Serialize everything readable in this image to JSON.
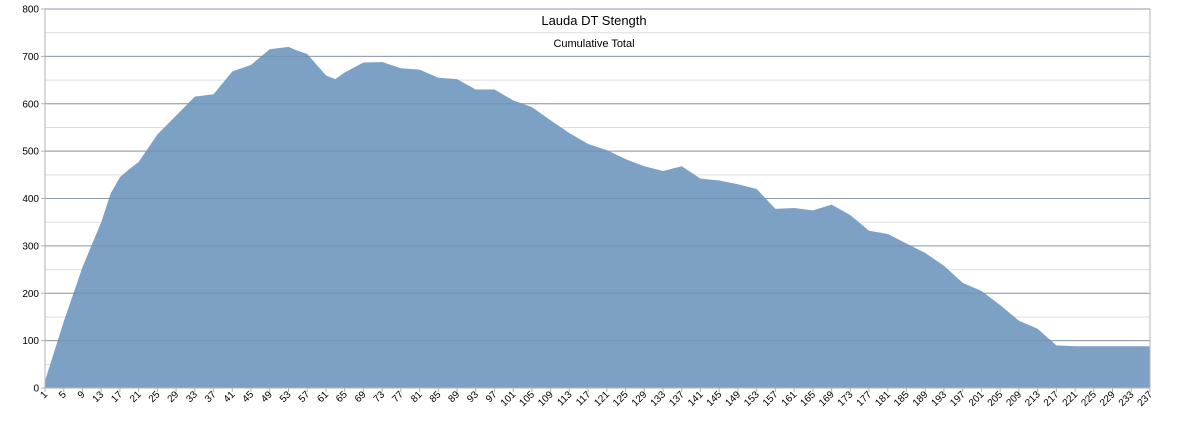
{
  "chart_data": {
    "type": "area",
    "title": "Lauda DT Stength",
    "subtitle": "Cumulative Total",
    "xlabel": "",
    "ylabel": "",
    "x_range": [
      1,
      237
    ],
    "ylim": [
      0,
      800
    ],
    "y_ticks": [
      0,
      100,
      200,
      300,
      400,
      500,
      600,
      700,
      800
    ],
    "x_tick_labels": [
      "1",
      "5",
      "9",
      "13",
      "17",
      "21",
      "25",
      "29",
      "33",
      "37",
      "41",
      "45",
      "49",
      "53",
      "57",
      "61",
      "65",
      "69",
      "73",
      "77",
      "81",
      "85",
      "89",
      "93",
      "97",
      "101",
      "105",
      "109",
      "113",
      "117",
      "121",
      "125",
      "129",
      "133",
      "137",
      "141",
      "145",
      "149",
      "153",
      "157",
      "161",
      "165",
      "169",
      "173",
      "177",
      "181",
      "185",
      "189",
      "193",
      "197",
      "201",
      "205",
      "209",
      "213",
      "217",
      "221",
      "225",
      "229",
      "233",
      "237"
    ],
    "grid": true,
    "legend": "none",
    "fill_color": "#7da1c4",
    "x": [
      1,
      5,
      9,
      13,
      15,
      17,
      19,
      21,
      25,
      29,
      33,
      37,
      41,
      45,
      49,
      53,
      55,
      57,
      61,
      63,
      65,
      69,
      73,
      77,
      81,
      85,
      89,
      93,
      97,
      101,
      105,
      109,
      113,
      117,
      121,
      125,
      129,
      133,
      137,
      141,
      145,
      149,
      153,
      157,
      161,
      165,
      169,
      173,
      177,
      181,
      185,
      189,
      193,
      197,
      201,
      205,
      209,
      213,
      217,
      221,
      225,
      229,
      233,
      237
    ],
    "values": [
      15,
      140,
      255,
      350,
      410,
      445,
      462,
      477,
      535,
      575,
      615,
      620,
      668,
      682,
      715,
      720,
      712,
      705,
      660,
      652,
      666,
      687,
      688,
      675,
      672,
      655,
      652,
      630,
      630,
      607,
      593,
      565,
      538,
      515,
      502,
      483,
      468,
      458,
      468,
      442,
      438,
      430,
      420,
      378,
      380,
      375,
      387,
      365,
      332,
      325,
      305,
      285,
      258,
      222,
      205,
      175,
      142,
      125,
      90,
      88,
      88,
      88,
      88,
      88
    ]
  }
}
